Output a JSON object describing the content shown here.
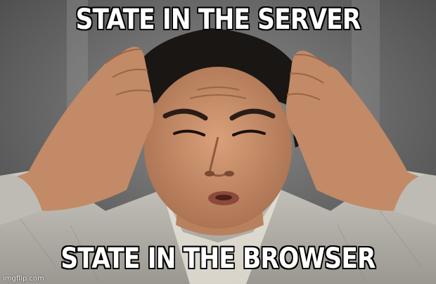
{
  "meme": {
    "top_text": "STATE IN THE SERVER",
    "bottom_text": "STATE IN THE BROWSER",
    "watermark": "imgflip.com",
    "colors": {
      "caption_fill": "#ffffff",
      "caption_stroke": "#000000",
      "background": "#6b6b6b",
      "skin": "#c98e6a",
      "hair": "#1a1614",
      "shirt": "#b8b6ae"
    }
  }
}
